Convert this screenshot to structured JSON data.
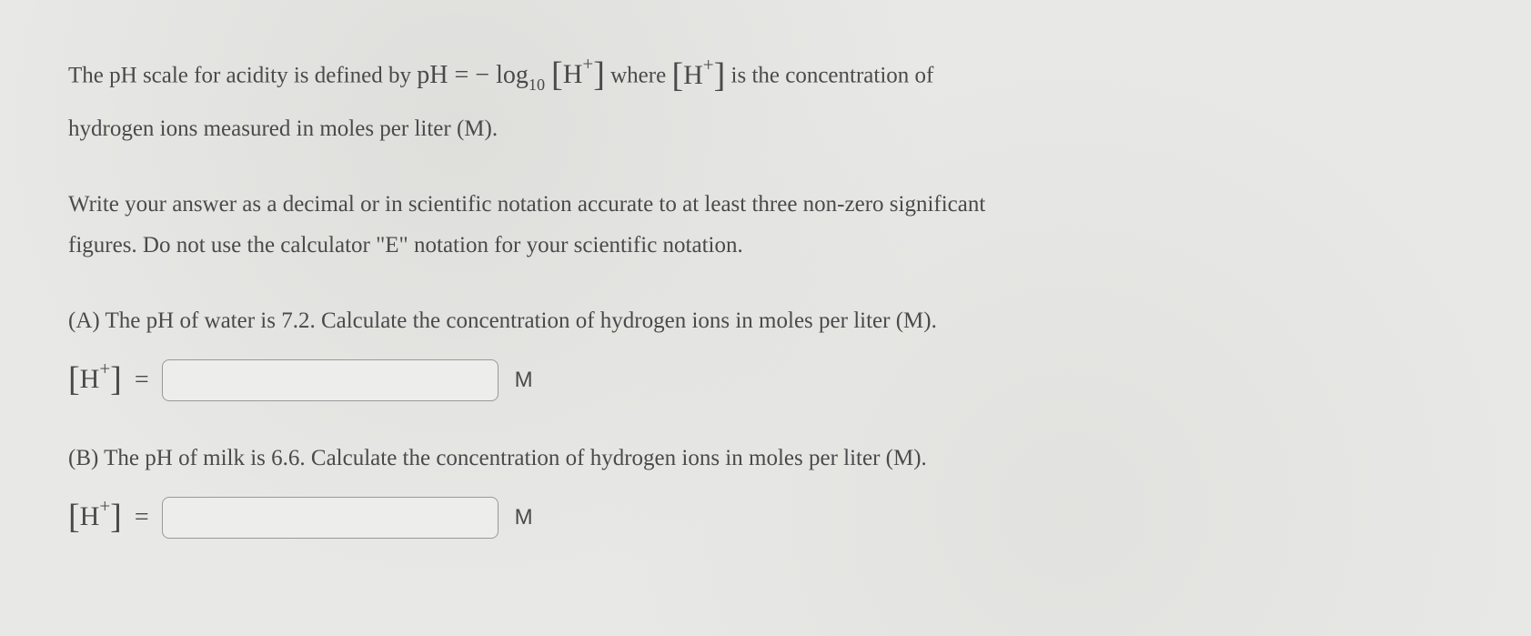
{
  "intro": {
    "text_before_formula": "The ",
    "ph_label": "pH",
    "text_after_ph": " scale for acidity is defined by ",
    "formula_lhs": "pH",
    "equals": " = ",
    "minus": "− ",
    "log_text": "log",
    "log_base": "10",
    "space": " ",
    "bracket_open": "[",
    "h_symbol": "H",
    "plus_super": "+",
    "bracket_close": "]",
    "text_where": " where ",
    "text_after_bracket2": " is the concentration of",
    "line2": "hydrogen ions measured in moles per liter (M)."
  },
  "instructions": {
    "line1": "Write your answer as a decimal or in scientific notation accurate to at least three non-zero significant",
    "line2": "figures. Do not use the calculator \"E\" notation for your scientific notation."
  },
  "partA": {
    "label": "(A) The ",
    "ph_label": "pH",
    "text": " of water is 7.2. Calculate the concentration of hydrogen ions in moles per liter (M).",
    "unit": "M",
    "input_value": ""
  },
  "partB": {
    "label": "(B) The ",
    "ph_label": "pH",
    "text": " of milk is 6.6. Calculate the concentration of hydrogen ions in moles per liter (M).",
    "unit": "M",
    "input_value": ""
  },
  "colors": {
    "background": "#e8e8e6",
    "text": "#4a4a4a",
    "input_border": "#999999",
    "input_bg": "#ededeb"
  },
  "typography": {
    "body_fontsize": 25,
    "formula_fontsize": 28,
    "bracket_fontsize": 30,
    "unit_fontsize": 24
  }
}
